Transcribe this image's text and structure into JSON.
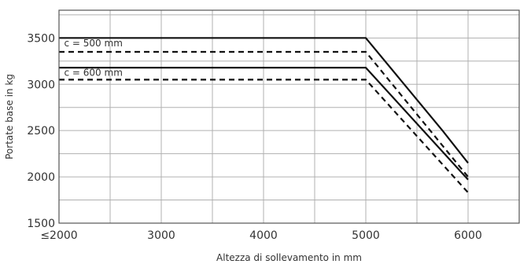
{
  "chart_data": {
    "type": "line",
    "title": "",
    "xlabel": "Altezza di sollevamento in mm",
    "ylabel": "Portate base in kg",
    "xlim": [
      2000,
      6500
    ],
    "ylim": [
      1500,
      3800
    ],
    "x_ticks": [
      {
        "value": 2000,
        "label": "≤2000"
      },
      {
        "value": 3000,
        "label": "3000"
      },
      {
        "value": 4000,
        "label": "4000"
      },
      {
        "value": 5000,
        "label": "5000"
      },
      {
        "value": 6000,
        "label": "6000"
      }
    ],
    "y_ticks": [
      {
        "value": 1500,
        "label": "1500"
      },
      {
        "value": 2000,
        "label": "2000"
      },
      {
        "value": 2500,
        "label": "2500"
      },
      {
        "value": 3000,
        "label": "3000"
      },
      {
        "value": 3500,
        "label": "3500"
      }
    ],
    "x_grid": [
      2000,
      2500,
      3000,
      3500,
      4000,
      4500,
      5000,
      5500,
      6000,
      6500
    ],
    "y_grid": [
      1500,
      1750,
      2000,
      2250,
      2500,
      2750,
      3000,
      3250,
      3500,
      3750
    ],
    "grid": true,
    "series": [
      {
        "style": "solid",
        "x": [
          2000,
          5000,
          5750,
          6000
        ],
        "y": [
          3500,
          3500,
          2500,
          2150
        ]
      },
      {
        "style": "dashed",
        "x": [
          2000,
          5000,
          6000
        ],
        "y": [
          3350,
          3350,
          2000
        ]
      },
      {
        "style": "solid",
        "x": [
          2000,
          5000,
          6000
        ],
        "y": [
          3180,
          3180,
          1970
        ]
      },
      {
        "style": "dashed",
        "x": [
          2000,
          5000,
          6000
        ],
        "y": [
          3050,
          3050,
          1830
        ]
      }
    ],
    "annotations": [
      {
        "text": "c = 500 mm",
        "x": 2050,
        "y": 3410
      },
      {
        "text": "c = 600 mm",
        "x": 2050,
        "y": 3090
      }
    ]
  }
}
